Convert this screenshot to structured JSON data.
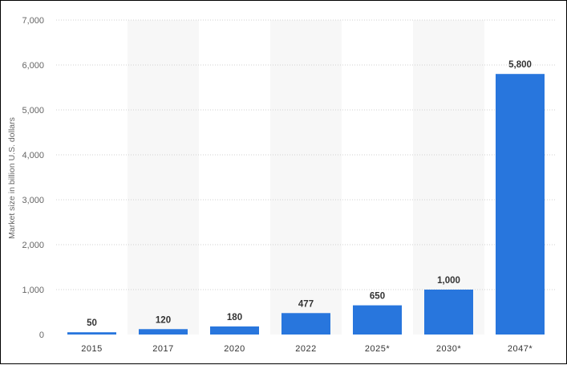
{
  "chart_data": {
    "type": "bar",
    "categories": [
      "2015",
      "2017",
      "2020",
      "2022",
      "2025*",
      "2030*",
      "2047*"
    ],
    "values": [
      50,
      120,
      180,
      477,
      650,
      1000,
      5800
    ],
    "value_labels": [
      "50",
      "120",
      "180",
      "477",
      "650",
      "1,000",
      "5,800"
    ],
    "ylabel": "Market size in billion U.S. dollars",
    "xlabel": "",
    "title": "",
    "ylim": [
      0,
      7000
    ],
    "yticks": [
      0,
      1000,
      2000,
      3000,
      4000,
      5000,
      6000,
      7000
    ],
    "ytick_labels": [
      "0",
      "1,000",
      "2,000",
      "3,000",
      "4,000",
      "5,000",
      "6,000",
      "7,000"
    ],
    "grid": true,
    "legend": "none",
    "colors": {
      "bar": "#2876dd",
      "band": "#f7f7f7",
      "grid": "#d0d0d0"
    }
  }
}
